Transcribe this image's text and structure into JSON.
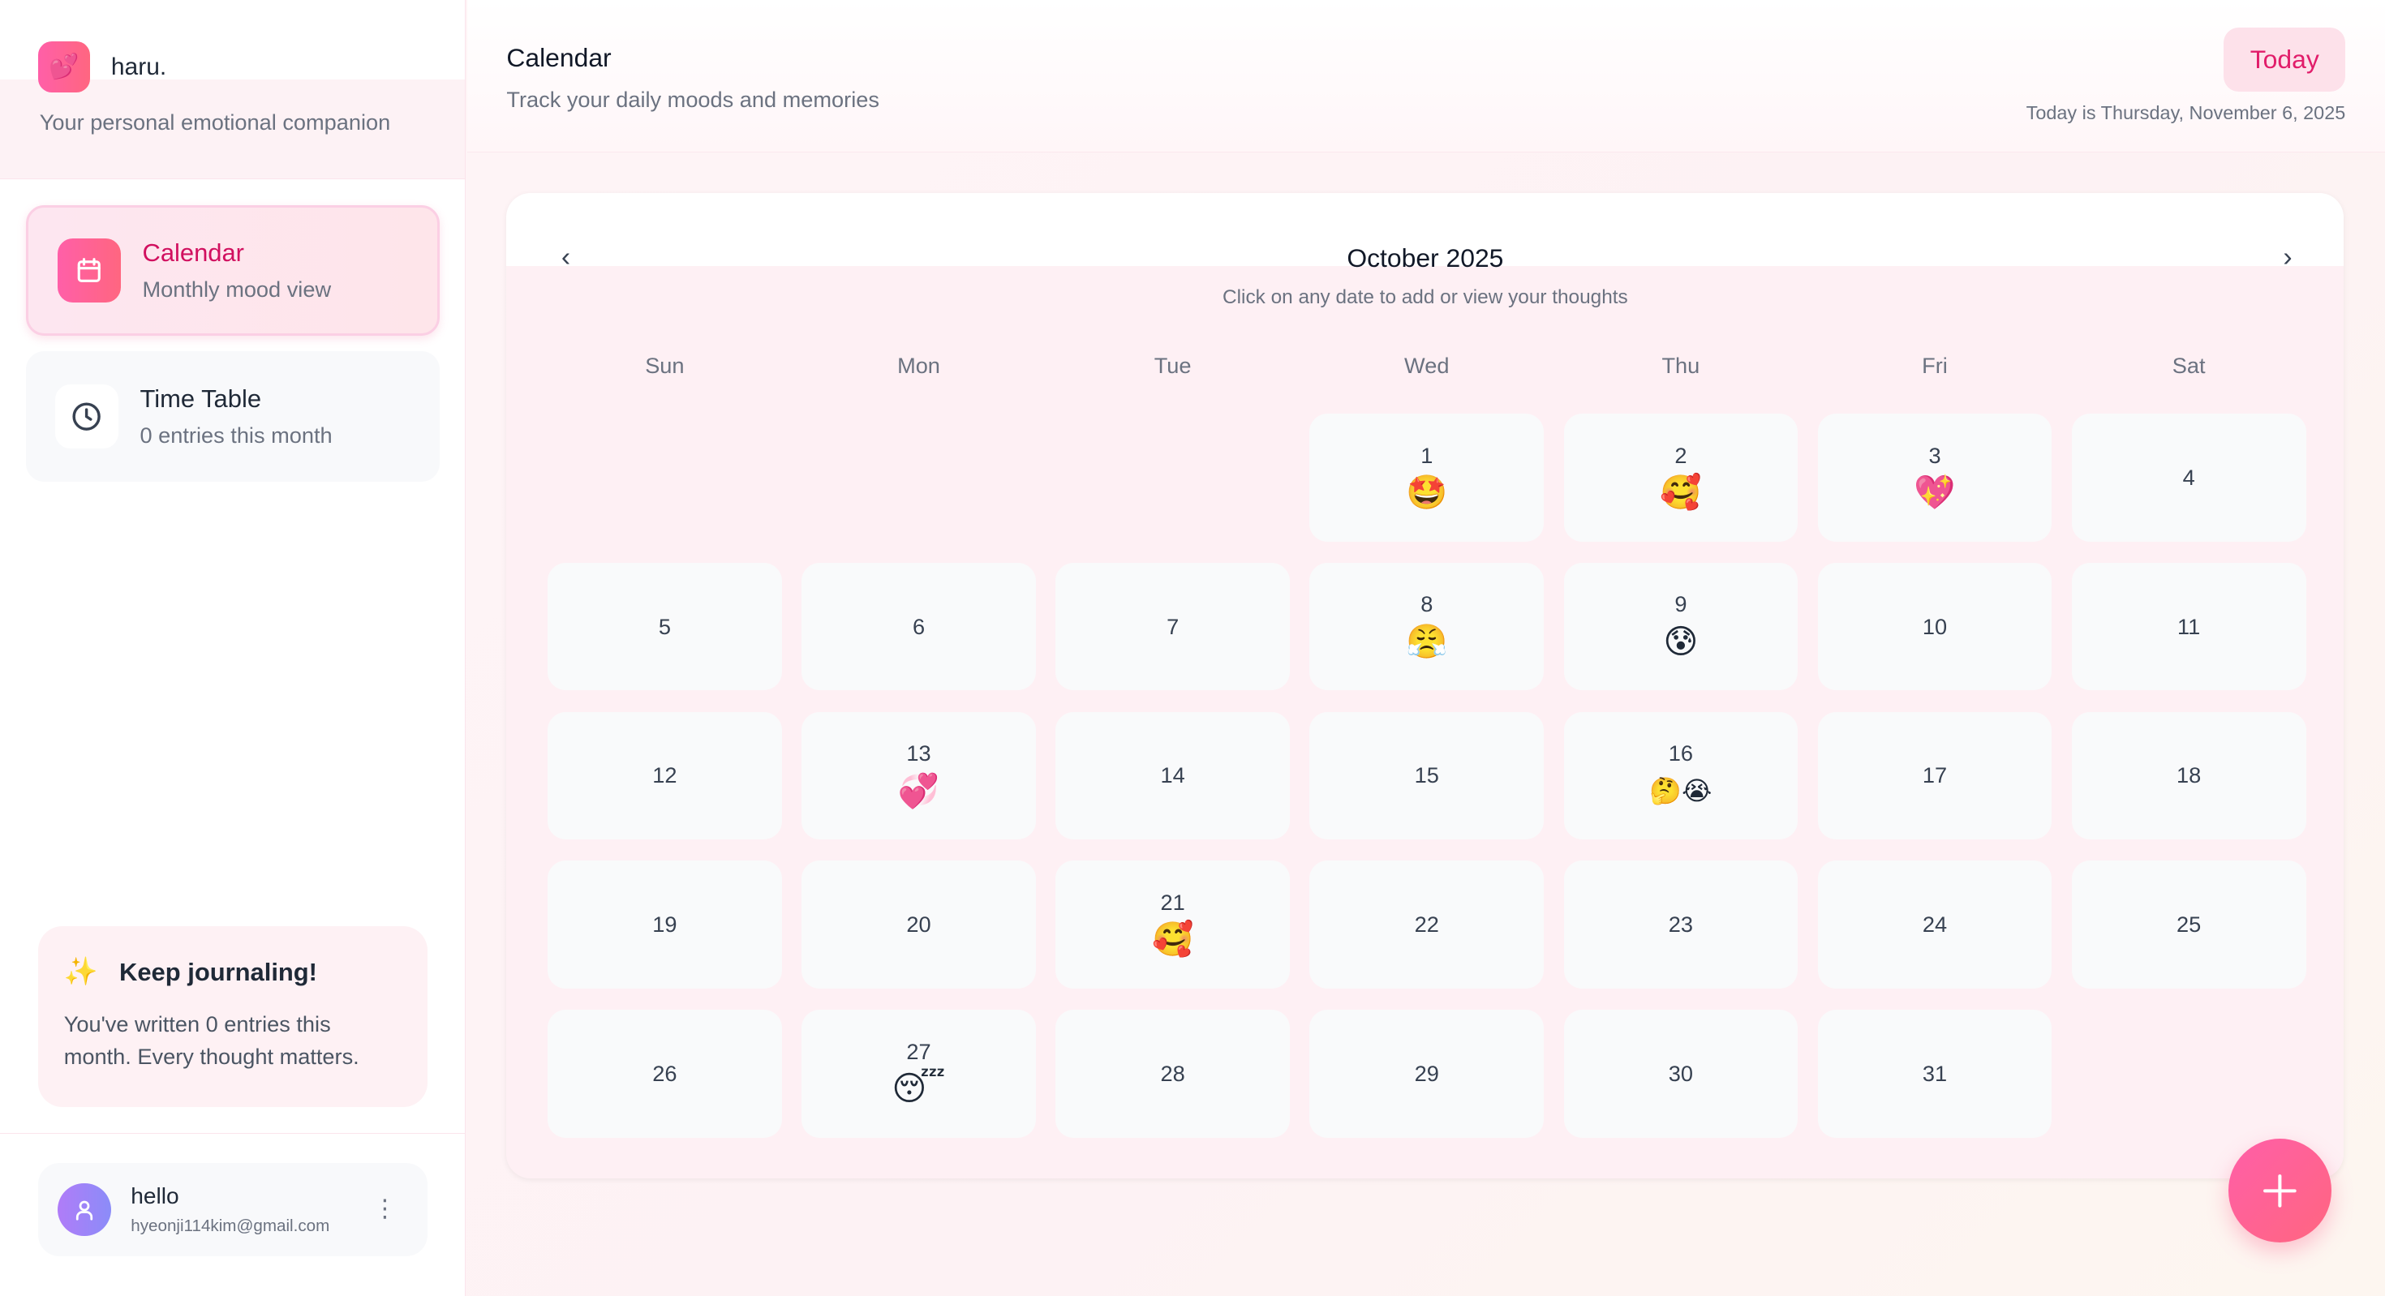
{
  "app": {
    "name": "haru.",
    "tagline": "Your personal emotional companion",
    "logo_emoji": "💕"
  },
  "sidebar": {
    "items": [
      {
        "label": "Calendar",
        "sub": "Monthly mood view",
        "icon": "calendar-icon",
        "active": true
      },
      {
        "label": "Time Table",
        "sub": "0 entries this month",
        "icon": "clock-icon",
        "active": false
      }
    ]
  },
  "tip": {
    "emoji": "✨",
    "title": "Keep journaling!",
    "body": "You've written 0 entries this month. Every thought matters."
  },
  "user": {
    "name": "hello",
    "email": "hyeonji114kim@gmail.com"
  },
  "header": {
    "title": "Calendar",
    "subtitle": "Track your daily moods and memories",
    "today_button": "Today",
    "today_text": "Today is Thursday, November 6, 2025"
  },
  "calendar": {
    "month": "October 2025",
    "hint": "Click on any date to add or view your thoughts",
    "prev_icon": "‹",
    "next_icon": "›",
    "weekdays": [
      "Sun",
      "Mon",
      "Tue",
      "Wed",
      "Thu",
      "Fri",
      "Sat"
    ],
    "first_weekday": 3,
    "days": [
      {
        "d": "1",
        "e": "🤩"
      },
      {
        "d": "2",
        "e": "🥰"
      },
      {
        "d": "3",
        "e": "💖"
      },
      {
        "d": "4",
        "e": ""
      },
      {
        "d": "5",
        "e": ""
      },
      {
        "d": "6",
        "e": ""
      },
      {
        "d": "7",
        "e": ""
      },
      {
        "d": "8",
        "e": "😤"
      },
      {
        "d": "9",
        "e": "😰"
      },
      {
        "d": "10",
        "e": ""
      },
      {
        "d": "11",
        "e": ""
      },
      {
        "d": "12",
        "e": ""
      },
      {
        "d": "13",
        "e": "💞"
      },
      {
        "d": "14",
        "e": ""
      },
      {
        "d": "15",
        "e": ""
      },
      {
        "d": "16",
        "e": "🤔😭"
      },
      {
        "d": "17",
        "e": ""
      },
      {
        "d": "18",
        "e": ""
      },
      {
        "d": "19",
        "e": ""
      },
      {
        "d": "20",
        "e": ""
      },
      {
        "d": "21",
        "e": "🥰"
      },
      {
        "d": "22",
        "e": ""
      },
      {
        "d": "23",
        "e": ""
      },
      {
        "d": "24",
        "e": ""
      },
      {
        "d": "25",
        "e": ""
      },
      {
        "d": "26",
        "e": ""
      },
      {
        "d": "27",
        "e": "😴"
      },
      {
        "d": "28",
        "e": ""
      },
      {
        "d": "29",
        "e": ""
      },
      {
        "d": "30",
        "e": ""
      },
      {
        "d": "31",
        "e": ""
      }
    ]
  },
  "colors": {
    "accent": "#ff5fa8",
    "accent_text": "#d1105f",
    "avatar": "#9b84f8"
  }
}
